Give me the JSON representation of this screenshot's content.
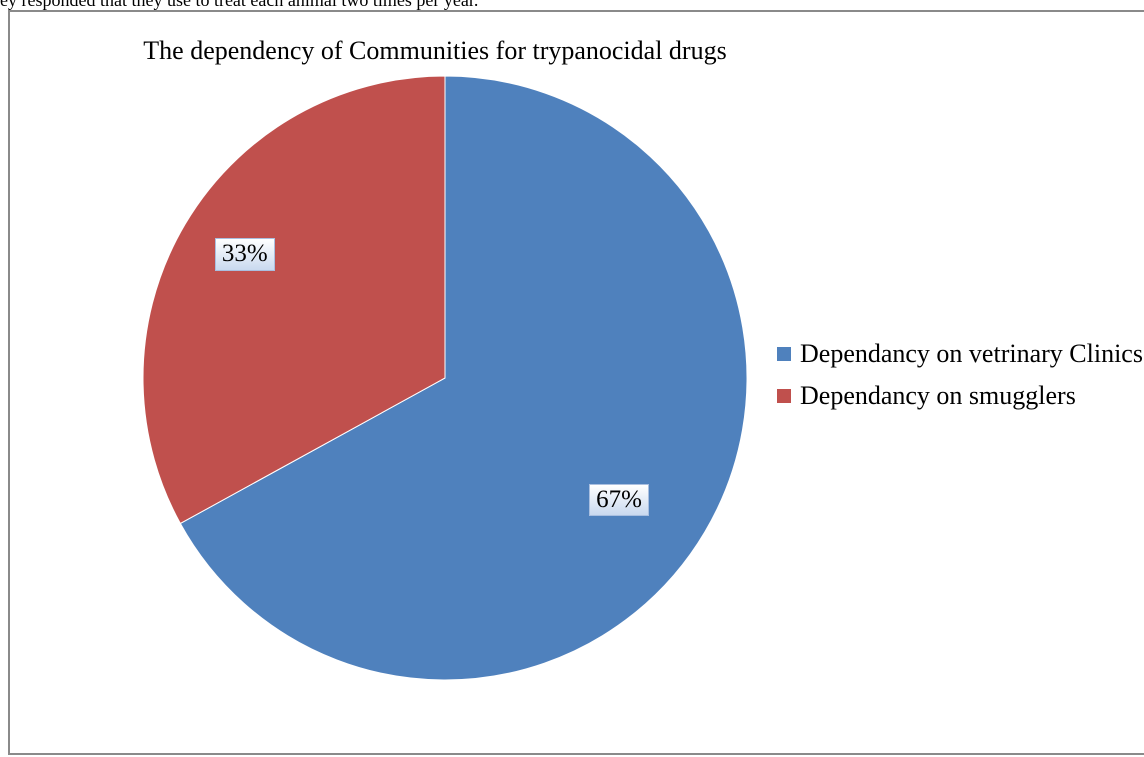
{
  "page": {
    "top_text": "ey responded that they use to treat each animal two times per year."
  },
  "chart_data": {
    "type": "pie",
    "title": "The dependency of Communities for trypanocidal drugs",
    "slices": [
      {
        "name": "Dependancy on vetrinary Clinics",
        "value": 67,
        "label": "67%",
        "color": "#4f81bd"
      },
      {
        "name": "Dependancy on smugglers",
        "value": 33,
        "label": "33%",
        "color": "#c0504d"
      }
    ],
    "start_angle_deg": 0,
    "direction": "clockwise",
    "legend_position": "right"
  }
}
